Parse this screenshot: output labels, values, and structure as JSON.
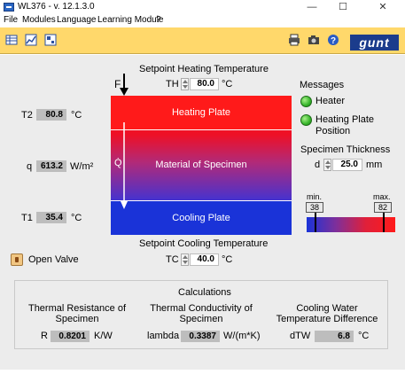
{
  "window": {
    "title": "WL376 - v. 12.1.3.0",
    "minimize": "—",
    "maximize": "☐",
    "close": "✕"
  },
  "menu": [
    "File",
    "Modules",
    "Language",
    "Learning Module",
    "?"
  ],
  "logo": "gunt",
  "setpoint_heating": {
    "title": "Setpoint Heating Temperature",
    "label": "TH",
    "value": "80.0",
    "unit": "°C"
  },
  "setpoint_cooling": {
    "title": "Setpoint Cooling Temperature",
    "label": "TC",
    "value": "40.0",
    "unit": "°C"
  },
  "force_label": "F",
  "heat_flow_label": "Q̇",
  "specimen": {
    "heating_plate": "Heating Plate",
    "material": "Material of Specimen",
    "cooling_plate": "Cooling Plate"
  },
  "readings": {
    "t2": {
      "label": "T2",
      "value": "80.8",
      "unit": "°C"
    },
    "q": {
      "label": "q",
      "value": "613.2",
      "unit": "W/m²"
    },
    "t1": {
      "label": "T1",
      "value": "35.4",
      "unit": "°C"
    }
  },
  "messages": {
    "title": "Messages",
    "heater": "Heater",
    "heating_plate_position_1": "Heating Plate",
    "heating_plate_position_2": "Position",
    "led_color": "#36b52a"
  },
  "thickness": {
    "title": "Specimen Thickness",
    "label": "d",
    "value": "25.0",
    "unit": "mm"
  },
  "scale": {
    "min_label": "min.",
    "max_label": "max.",
    "min_value": "38",
    "max_value": "82"
  },
  "open_valve": "Open Valve",
  "calculations": {
    "title": "Calculations",
    "resistance": {
      "title_1": "Thermal Resistance of",
      "title_2": "Specimen",
      "label": "R",
      "value": "0.8201",
      "unit": "K/W"
    },
    "conductivity": {
      "title_1": "Thermal Conductivity of",
      "title_2": "Specimen",
      "label": "lambda",
      "value": "0.3387",
      "unit": "W/(m*K)"
    },
    "cooling": {
      "title_1": "Cooling Water",
      "title_2": "Temperature Difference",
      "label": "dTW",
      "value": "6.8",
      "unit": "°C"
    }
  }
}
